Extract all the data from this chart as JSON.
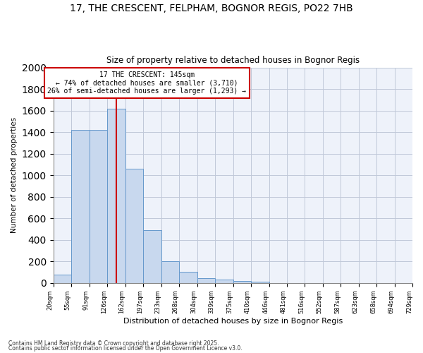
{
  "title": "17, THE CRESCENT, FELPHAM, BOGNOR REGIS, PO22 7HB",
  "subtitle": "Size of property relative to detached houses in Bognor Regis",
  "xlabel": "Distribution of detached houses by size in Bognor Regis",
  "ylabel": "Number of detached properties",
  "footnote1": "Contains HM Land Registry data © Crown copyright and database right 2025.",
  "footnote2": "Contains public sector information licensed under the Open Government Licence v3.0.",
  "bar_edges": [
    20,
    55,
    91,
    126,
    162,
    197,
    233,
    268,
    304,
    339,
    375,
    410,
    446,
    481,
    516,
    552,
    587,
    623,
    658,
    694,
    729
  ],
  "bar_heights": [
    75,
    1420,
    1420,
    1620,
    1060,
    490,
    205,
    105,
    45,
    35,
    20,
    15,
    0,
    0,
    0,
    0,
    0,
    0,
    0,
    0
  ],
  "bar_color": "#c8d8ee",
  "bar_edgecolor": "#6699cc",
  "property_size": 145,
  "red_line_color": "#cc0000",
  "annotation_text": "17 THE CRESCENT: 145sqm\n← 74% of detached houses are smaller (3,710)\n26% of semi-detached houses are larger (1,293) →",
  "annotation_box_color": "#cc0000",
  "annotation_text_color": "black",
  "ylim": [
    0,
    2000
  ],
  "yticks": [
    0,
    200,
    400,
    600,
    800,
    1000,
    1200,
    1400,
    1600,
    1800,
    2000
  ],
  "tick_labels": [
    "20sqm",
    "55sqm",
    "91sqm",
    "126sqm",
    "162sqm",
    "197sqm",
    "233sqm",
    "268sqm",
    "304sqm",
    "339sqm",
    "375sqm",
    "410sqm",
    "446sqm",
    "481sqm",
    "516sqm",
    "552sqm",
    "587sqm",
    "623sqm",
    "658sqm",
    "694sqm",
    "729sqm"
  ],
  "background_color": "#ffffff",
  "plot_bg_color": "#eef2fa",
  "grid_color": "#c0c8d8"
}
